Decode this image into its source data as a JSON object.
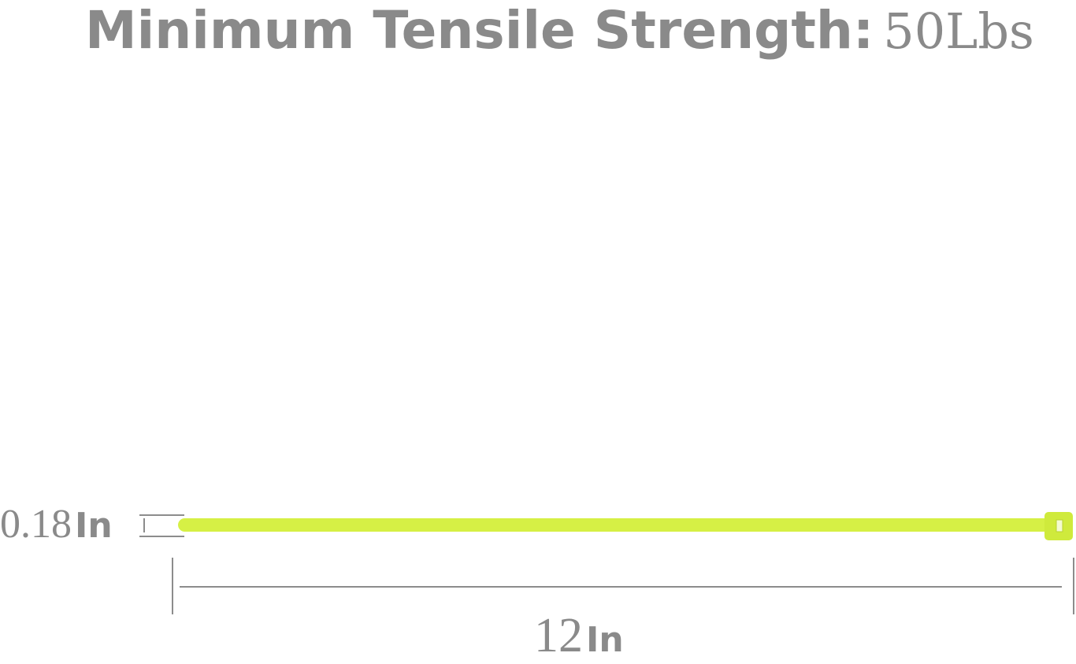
{
  "title": {
    "label": "Minimum Tensile Strength:",
    "value": "50Lbs"
  },
  "width_dim": {
    "value": "0.18",
    "unit": "In"
  },
  "length_dim": {
    "value": "12",
    "unit": "In"
  },
  "colors": {
    "tie": "#d6f045",
    "text": "#8a8a8a",
    "lines": "#8c8c8c"
  },
  "product": "cable-tie"
}
